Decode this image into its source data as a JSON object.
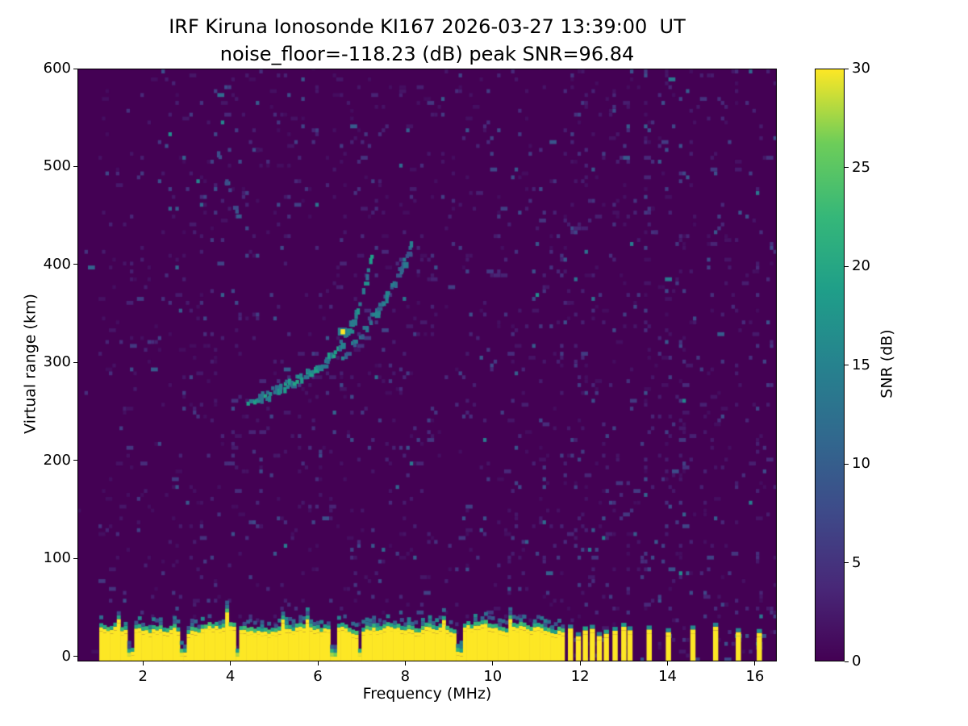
{
  "chart_data": {
    "type": "heatmap",
    "title_line1": "IRF Kiruna Ionosonde KI167 2026-03-27 13:39:00  UT",
    "title_line2": "noise_floor=-118.23 (dB) peak SNR=96.84",
    "xlabel": "Frequency (MHz)",
    "ylabel": "Virtual range (km)",
    "colorbar_label": "SNR (dB)",
    "colormap": "viridis",
    "xlim": [
      0.5,
      16.5
    ],
    "ylim": [
      -5,
      600
    ],
    "clim": [
      0,
      30
    ],
    "xticks": [
      2,
      4,
      6,
      8,
      10,
      12,
      14,
      16
    ],
    "yticks": [
      0,
      100,
      200,
      300,
      400,
      500,
      600
    ],
    "colorbar_ticks": [
      0,
      5,
      10,
      15,
      20,
      25,
      30
    ],
    "viridis_stops": [
      "#440154",
      "#482878",
      "#3e4a89",
      "#31688e",
      "#26828e",
      "#1f9e89",
      "#35b779",
      "#6dcd59",
      "#fde725"
    ],
    "background_snr": 0,
    "noise": {
      "seed": 1337,
      "base_density": 0.05,
      "cell_mhz": 0.08,
      "cell_km": 4
    },
    "ground_clutter_band": {
      "f_start": 1.0,
      "f_end": 11.62,
      "top_km_min": 22,
      "top_km_max": 40,
      "gap_freqs": [
        1.68,
        2.88,
        4.12,
        6.32,
        6.92,
        9.2
      ]
    },
    "high_freq_stripes": [
      11.72,
      11.9,
      12.06,
      12.22,
      12.38,
      12.54,
      12.74,
      12.94,
      13.08,
      13.52,
      13.96,
      14.52,
      15.04,
      15.56,
      16.04
    ],
    "noise_columns": [
      [
        2.1,
        0.04,
        1.6
      ],
      [
        3.3,
        0.04,
        1.5
      ],
      [
        5.05,
        0.04,
        1.5
      ],
      [
        7.9,
        0.04,
        1.6
      ],
      [
        9.4,
        0.04,
        1.5
      ],
      [
        10.6,
        0.04,
        1.5
      ],
      [
        11.9,
        0.05,
        2.6
      ],
      [
        12.12,
        0.05,
        2.2
      ],
      [
        12.3,
        0.05,
        2.2
      ],
      [
        12.5,
        0.05,
        2.6
      ],
      [
        12.72,
        0.05,
        2.2
      ],
      [
        12.92,
        0.05,
        2.0
      ],
      [
        13.52,
        0.06,
        3.4
      ],
      [
        13.96,
        0.06,
        2.8
      ],
      [
        14.3,
        0.05,
        2.0
      ],
      [
        14.52,
        0.05,
        2.6
      ],
      [
        15.04,
        0.06,
        3.4
      ],
      [
        15.3,
        0.05,
        2.2
      ],
      [
        15.56,
        0.06,
        3.0
      ],
      [
        16.04,
        0.06,
        3.0
      ]
    ],
    "echo_traces": [
      {
        "name": "f-trace-main",
        "snr": 11,
        "snr_var": 9,
        "density": 0.85,
        "points": [
          [
            4.35,
            256
          ],
          [
            4.6,
            261
          ],
          [
            4.85,
            266
          ],
          [
            5.1,
            271
          ],
          [
            5.35,
            277
          ],
          [
            5.6,
            283
          ],
          [
            5.85,
            290
          ],
          [
            6.1,
            298
          ],
          [
            6.35,
            308
          ],
          [
            6.55,
            320
          ],
          [
            6.7,
            332
          ],
          [
            6.85,
            348
          ],
          [
            6.95,
            363
          ],
          [
            7.05,
            378
          ],
          [
            7.15,
            395
          ],
          [
            7.25,
            412
          ]
        ]
      },
      {
        "name": "f-trace-second",
        "snr": 8,
        "snr_var": 8,
        "density": 0.7,
        "points": [
          [
            6.55,
            303
          ],
          [
            6.75,
            314
          ],
          [
            6.95,
            326
          ],
          [
            7.15,
            339
          ],
          [
            7.35,
            353
          ],
          [
            7.55,
            367
          ],
          [
            7.75,
            382
          ],
          [
            7.9,
            396
          ],
          [
            8.05,
            409
          ],
          [
            8.15,
            420
          ]
        ]
      },
      {
        "name": "faint-upper-streak",
        "snr": 6,
        "snr_var": 6,
        "density": 0.5,
        "points": [
          [
            3.62,
            522
          ],
          [
            3.74,
            503
          ],
          [
            3.86,
            485
          ],
          [
            3.98,
            467
          ],
          [
            4.1,
            449
          ],
          [
            4.22,
            432
          ]
        ]
      }
    ],
    "hot_spot": {
      "f": 6.52,
      "km": 330,
      "snr": 30
    }
  }
}
